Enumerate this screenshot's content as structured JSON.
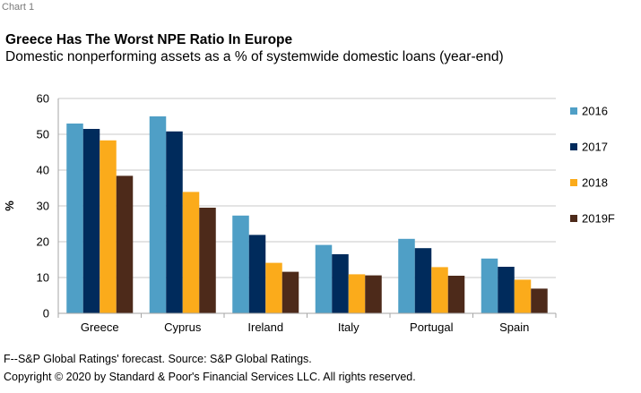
{
  "header": {
    "chart_label": "Chart 1",
    "title": "Greece Has The Worst NPE Ratio In Europe",
    "subtitle": "Domestic nonperforming assets as a % of systemwide domestic loans (year-end)"
  },
  "footer": {
    "footnote": "F--S&P Global Ratings' forecast. Source: S&P Global Ratings.",
    "copyright": "Copyright © 2020 by Standard & Poor's Financial Services LLC. All rights reserved."
  },
  "colors": {
    "2016": "#4f9fc6",
    "2017": "#002b5c",
    "2018": "#fbab1b",
    "2019F": "#4d2a1a",
    "grid": "#c8c8c8"
  },
  "chart_data": {
    "type": "bar",
    "categories": [
      "Greece",
      "Cyprus",
      "Ireland",
      "Italy",
      "Portugal",
      "Spain"
    ],
    "series": [
      {
        "name": "2016",
        "values": [
          53,
          55,
          27.3,
          19.1,
          20.8,
          15.3
        ]
      },
      {
        "name": "2017",
        "values": [
          51.5,
          50.8,
          21.9,
          16.5,
          18.2,
          13
        ]
      },
      {
        "name": "2018",
        "values": [
          48.3,
          33.9,
          14.1,
          10.9,
          12.9,
          9.4
        ]
      },
      {
        "name": "2019F",
        "values": [
          38.4,
          29.5,
          11.6,
          10.6,
          10.5,
          6.9
        ]
      }
    ],
    "xlabel": "",
    "ylabel": "%",
    "ylim": [
      0,
      60
    ],
    "yticks": [
      0,
      10,
      20,
      30,
      40,
      50,
      60
    ],
    "grid": true,
    "legend_position": "right"
  }
}
